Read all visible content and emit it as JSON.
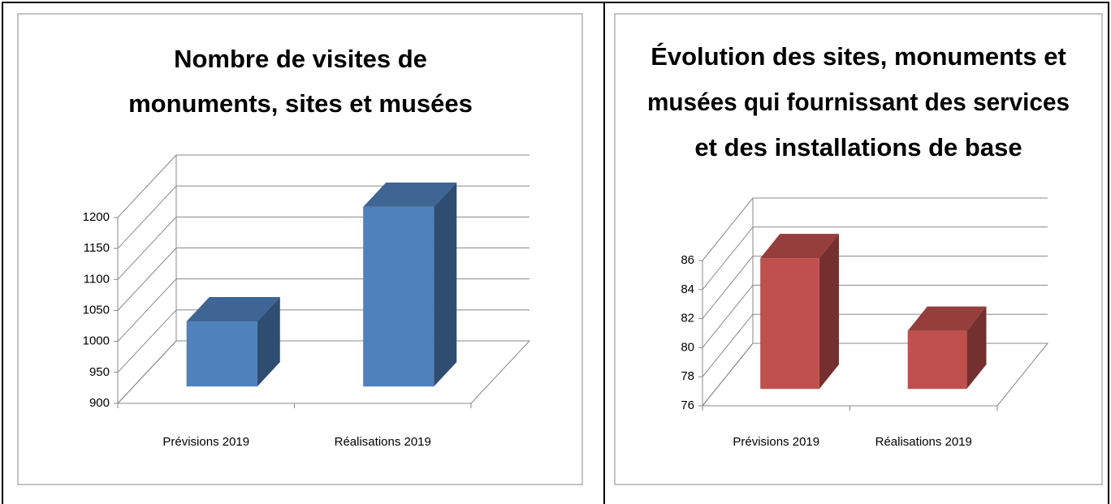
{
  "chart_data": [
    {
      "type": "bar3d",
      "title": [
        "Nombre de visites de",
        "monuments, sites et musées"
      ],
      "categories": [
        "Prévisions 2019",
        "Réalisations 2019"
      ],
      "values": [
        1005,
        1190
      ],
      "color": "#4f81bd",
      "ylim": [
        900,
        1200
      ],
      "yticks": [
        900,
        950,
        1000,
        1050,
        1100,
        1150,
        1200
      ],
      "grid": true
    },
    {
      "type": "bar3d",
      "title": [
        "Évolution des sites, monuments et",
        "musées qui fournissant des services",
        "et des installations de base"
      ],
      "categories": [
        "Prévisions 2019",
        "Réalisations 2019"
      ],
      "values": [
        85,
        80
      ],
      "color": "#c0504d",
      "ylim": [
        76,
        86
      ],
      "yticks": [
        76,
        78,
        80,
        82,
        84,
        86
      ],
      "grid": true
    }
  ]
}
